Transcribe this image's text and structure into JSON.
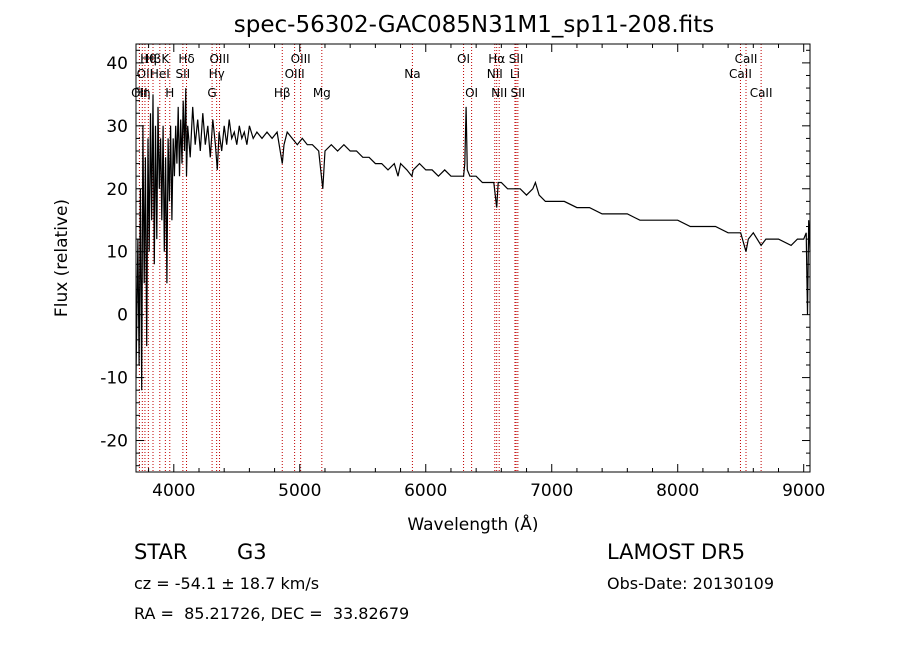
{
  "chart_data": {
    "type": "line",
    "title": "spec-56302-GAC085N31M1_sp11-208.fits",
    "xlabel": "Wavelength (Å)",
    "ylabel": "Flux (relative)",
    "xlim": [
      3700,
      9050
    ],
    "ylim": [
      -25,
      43
    ],
    "xticks": [
      4000,
      5000,
      6000,
      7000,
      8000,
      9000
    ],
    "yticks": [
      -20,
      -10,
      0,
      10,
      20,
      30,
      40
    ],
    "grid": false,
    "series": [
      {
        "points": [
          [
            3700,
            -10
          ],
          [
            3715,
            12
          ],
          [
            3725,
            -8
          ],
          [
            3735,
            20
          ],
          [
            3745,
            -12
          ],
          [
            3755,
            30
          ],
          [
            3765,
            5
          ],
          [
            3775,
            25
          ],
          [
            3785,
            -5
          ],
          [
            3795,
            28
          ],
          [
            3805,
            10
          ],
          [
            3815,
            32
          ],
          [
            3825,
            15
          ],
          [
            3835,
            35
          ],
          [
            3845,
            8
          ],
          [
            3855,
            30
          ],
          [
            3865,
            12
          ],
          [
            3875,
            33
          ],
          [
            3885,
            20
          ],
          [
            3895,
            28
          ],
          [
            3905,
            15
          ],
          [
            3915,
            30
          ],
          [
            3925,
            10
          ],
          [
            3935,
            25
          ],
          [
            3945,
            5
          ],
          [
            3955,
            28
          ],
          [
            3965,
            18
          ],
          [
            3975,
            30
          ],
          [
            3985,
            15
          ],
          [
            3995,
            28
          ],
          [
            4005,
            22
          ],
          [
            4015,
            30
          ],
          [
            4025,
            24
          ],
          [
            4035,
            33
          ],
          [
            4045,
            22
          ],
          [
            4055,
            31
          ],
          [
            4065,
            24
          ],
          [
            4075,
            34
          ],
          [
            4085,
            26
          ],
          [
            4095,
            36
          ],
          [
            4101,
            22
          ],
          [
            4110,
            30
          ],
          [
            4130,
            25
          ],
          [
            4150,
            33
          ],
          [
            4170,
            27
          ],
          [
            4190,
            31
          ],
          [
            4210,
            26
          ],
          [
            4230,
            32
          ],
          [
            4250,
            27
          ],
          [
            4270,
            30
          ],
          [
            4290,
            25
          ],
          [
            4310,
            31
          ],
          [
            4330,
            27
          ],
          [
            4345,
            23
          ],
          [
            4360,
            29
          ],
          [
            4380,
            26
          ],
          [
            4400,
            30
          ],
          [
            4420,
            27
          ],
          [
            4440,
            31
          ],
          [
            4460,
            28
          ],
          [
            4480,
            29
          ],
          [
            4500,
            27
          ],
          [
            4520,
            30
          ],
          [
            4540,
            28
          ],
          [
            4560,
            29
          ],
          [
            4580,
            27
          ],
          [
            4600,
            30
          ],
          [
            4630,
            28
          ],
          [
            4660,
            29
          ],
          [
            4700,
            28
          ],
          [
            4740,
            29
          ],
          [
            4780,
            28
          ],
          [
            4820,
            29
          ],
          [
            4845,
            26
          ],
          [
            4861,
            24
          ],
          [
            4875,
            27
          ],
          [
            4900,
            29
          ],
          [
            4940,
            28
          ],
          [
            4980,
            27
          ],
          [
            5020,
            28
          ],
          [
            5060,
            27
          ],
          [
            5100,
            27
          ],
          [
            5150,
            26
          ],
          [
            5172,
            22
          ],
          [
            5183,
            20
          ],
          [
            5200,
            26
          ],
          [
            5250,
            27
          ],
          [
            5300,
            26
          ],
          [
            5350,
            27
          ],
          [
            5400,
            26
          ],
          [
            5450,
            26
          ],
          [
            5500,
            25
          ],
          [
            5550,
            25
          ],
          [
            5600,
            24
          ],
          [
            5650,
            24
          ],
          [
            5700,
            23
          ],
          [
            5750,
            24
          ],
          [
            5780,
            22
          ],
          [
            5800,
            24
          ],
          [
            5850,
            23
          ],
          [
            5890,
            22
          ],
          [
            5900,
            23
          ],
          [
            5950,
            24
          ],
          [
            6000,
            23
          ],
          [
            6050,
            23
          ],
          [
            6100,
            22
          ],
          [
            6150,
            23
          ],
          [
            6200,
            22
          ],
          [
            6250,
            22
          ],
          [
            6300,
            22
          ],
          [
            6310,
            24
          ],
          [
            6320,
            33
          ],
          [
            6330,
            23
          ],
          [
            6350,
            22
          ],
          [
            6400,
            22
          ],
          [
            6450,
            21
          ],
          [
            6500,
            21
          ],
          [
            6540,
            21
          ],
          [
            6563,
            17
          ],
          [
            6575,
            21
          ],
          [
            6600,
            21
          ],
          [
            6650,
            20
          ],
          [
            6700,
            20
          ],
          [
            6750,
            20
          ],
          [
            6800,
            19
          ],
          [
            6850,
            20
          ],
          [
            6870,
            21
          ],
          [
            6900,
            19
          ],
          [
            6950,
            18
          ],
          [
            7000,
            18
          ],
          [
            7100,
            18
          ],
          [
            7200,
            17
          ],
          [
            7300,
            17
          ],
          [
            7400,
            16
          ],
          [
            7500,
            16
          ],
          [
            7600,
            16
          ],
          [
            7700,
            15
          ],
          [
            7800,
            15
          ],
          [
            7900,
            15
          ],
          [
            8000,
            15
          ],
          [
            8100,
            14
          ],
          [
            8200,
            14
          ],
          [
            8300,
            14
          ],
          [
            8400,
            13
          ],
          [
            8500,
            13
          ],
          [
            8542,
            10
          ],
          [
            8560,
            12
          ],
          [
            8600,
            13
          ],
          [
            8662,
            11
          ],
          [
            8700,
            12
          ],
          [
            8800,
            12
          ],
          [
            8900,
            11
          ],
          [
            8950,
            12
          ],
          [
            9000,
            12
          ],
          [
            9020,
            13
          ],
          [
            9030,
            0
          ],
          [
            9040,
            15
          ],
          [
            9050,
            10
          ]
        ]
      }
    ],
    "lines": [
      {
        "x": 3727,
        "label": "OII",
        "row": 3
      },
      {
        "x": 3750,
        "label": "Hη",
        "row": 3
      },
      {
        "x": 3771,
        "label": "OII",
        "row": 2
      },
      {
        "x": 3798,
        "label": "Hθ",
        "row": 1
      },
      {
        "x": 3835,
        "label": "Hβ",
        "row": 1
      },
      {
        "x": 3889,
        "label": "HeI",
        "row": 2
      },
      {
        "x": 3933,
        "label": "K",
        "row": 1
      },
      {
        "x": 3968,
        "label": "H",
        "row": 3
      },
      {
        "x": 4072,
        "label": "SII",
        "row": 2
      },
      {
        "x": 4101,
        "label": "Hδ",
        "row": 1
      },
      {
        "x": 4304,
        "label": "G",
        "row": 3
      },
      {
        "x": 4340,
        "label": "Hγ",
        "row": 2
      },
      {
        "x": 4363,
        "label": "OIII",
        "row": 1
      },
      {
        "x": 4861,
        "label": "Hβ",
        "row": 3
      },
      {
        "x": 4959,
        "label": "OIII",
        "row": 2
      },
      {
        "x": 5007,
        "label": "OIII",
        "row": 1
      },
      {
        "x": 5175,
        "label": "Mg",
        "row": 3
      },
      {
        "x": 5894,
        "label": "Na",
        "row": 2
      },
      {
        "x": 6300,
        "label": "OI",
        "row": 1
      },
      {
        "x": 6364,
        "label": "OI",
        "row": 3
      },
      {
        "x": 6548,
        "label": "NII",
        "row": 2
      },
      {
        "x": 6563,
        "label": "Hα",
        "row": 1
      },
      {
        "x": 6583,
        "label": "NII",
        "row": 3
      },
      {
        "x": 6708,
        "label": "Li",
        "row": 2
      },
      {
        "x": 6717,
        "label": "SII",
        "row": 1
      },
      {
        "x": 6731,
        "label": "SII",
        "row": 3
      },
      {
        "x": 8498,
        "label": "CaII",
        "row": 2
      },
      {
        "x": 8542,
        "label": "CaII",
        "row": 1
      },
      {
        "x": 8662,
        "label": "CaII",
        "row": 3
      }
    ]
  },
  "info": {
    "object_type": "STAR",
    "subclass": "G3",
    "survey": "LAMOST DR5",
    "redshift": "cz = -54.1 ± 18.7 km/s",
    "obs_date": "Obs-Date: 20130109",
    "coords": "RA =  85.21726, DEC =  33.82679"
  },
  "colors": {
    "spectrum": "#000000",
    "line_markers": "#c00000",
    "text": "#000000"
  }
}
